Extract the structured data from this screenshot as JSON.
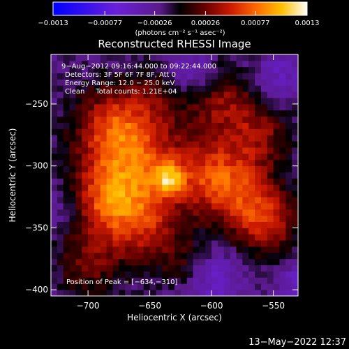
{
  "chart_data": {
    "type": "heatmap",
    "title": "Reconstructed RHESSI Image",
    "xlabel": "Heliocentric X (arcsec)",
    "ylabel": "Heliocentric Y (arcsec)",
    "xlim": [
      -730,
      -530
    ],
    "ylim": [
      -405,
      -210
    ],
    "xticks": [
      -700,
      -650,
      -600,
      -550
    ],
    "yticks": [
      -250,
      -300,
      -350,
      -400
    ],
    "xtick_labels": [
      "−700",
      "−650",
      "−600",
      "−550"
    ],
    "ytick_labels": [
      "−250",
      "−300",
      "−350",
      "−400"
    ],
    "colorbar": {
      "range": [
        -0.0013,
        0.0013
      ],
      "ticks": [
        -0.0013,
        -0.00077,
        -0.00026,
        0.00026,
        0.00077,
        0.0013
      ],
      "tick_labels": [
        "−0.0013",
        "−0.00077",
        "−0.00026",
        "0.00026",
        "0.00077",
        "0.0013"
      ],
      "units_label": "(photons cm⁻² s⁻¹ asec⁻²)"
    },
    "annotations": [
      "9−Aug−2012 09:16:44.000 to 09:22:44.000",
      "Detectors: 3F 5F 6F 7F 8F, Att 0",
      "Energy Range: 12.0 − 25.0 keV",
      "Clean     Total counts: 1.21E+04"
    ],
    "peak_label": "Position of Peak = [−634,−310]",
    "peak": [
      -634,
      -310
    ],
    "grid": false,
    "blobs": [
      {
        "x": -634,
        "y": -310,
        "sigma": 9,
        "amp": 0.00065
      },
      {
        "x": -660,
        "y": -300,
        "sigma": 30,
        "amp": 0.0008
      },
      {
        "x": -680,
        "y": -265,
        "sigma": 22,
        "amp": 0.0006
      },
      {
        "x": -690,
        "y": -330,
        "sigma": 22,
        "amp": 0.0006
      },
      {
        "x": -655,
        "y": -350,
        "sigma": 22,
        "amp": 0.0005
      },
      {
        "x": -700,
        "y": -380,
        "sigma": 18,
        "amp": 0.0004
      },
      {
        "x": -640,
        "y": -240,
        "sigma": 18,
        "amp": 0.0003
      },
      {
        "x": -600,
        "y": -305,
        "sigma": 20,
        "amp": 0.00045
      },
      {
        "x": -580,
        "y": -320,
        "sigma": 22,
        "amp": 0.0006
      },
      {
        "x": -555,
        "y": -345,
        "sigma": 18,
        "amp": 0.00065
      },
      {
        "x": -590,
        "y": -250,
        "sigma": 20,
        "amp": 0.0005
      },
      {
        "x": -560,
        "y": -275,
        "sigma": 18,
        "amp": 0.00045
      },
      {
        "x": -620,
        "y": -380,
        "sigma": 15,
        "amp": 0.0003
      },
      {
        "x": -620,
        "y": -225,
        "sigma": 14,
        "amp": -0.0004
      },
      {
        "x": -720,
        "y": -330,
        "sigma": 15,
        "amp": -0.0003
      },
      {
        "x": -545,
        "y": -230,
        "sigma": 14,
        "amp": -0.0003
      },
      {
        "x": -600,
        "y": -390,
        "sigma": 15,
        "amp": -0.0004
      },
      {
        "x": -530,
        "y": -395,
        "sigma": 12,
        "amp": -0.0003
      }
    ],
    "background": -0.0002
  },
  "footer": {
    "timestamp": "13−May−2022 12:37"
  }
}
